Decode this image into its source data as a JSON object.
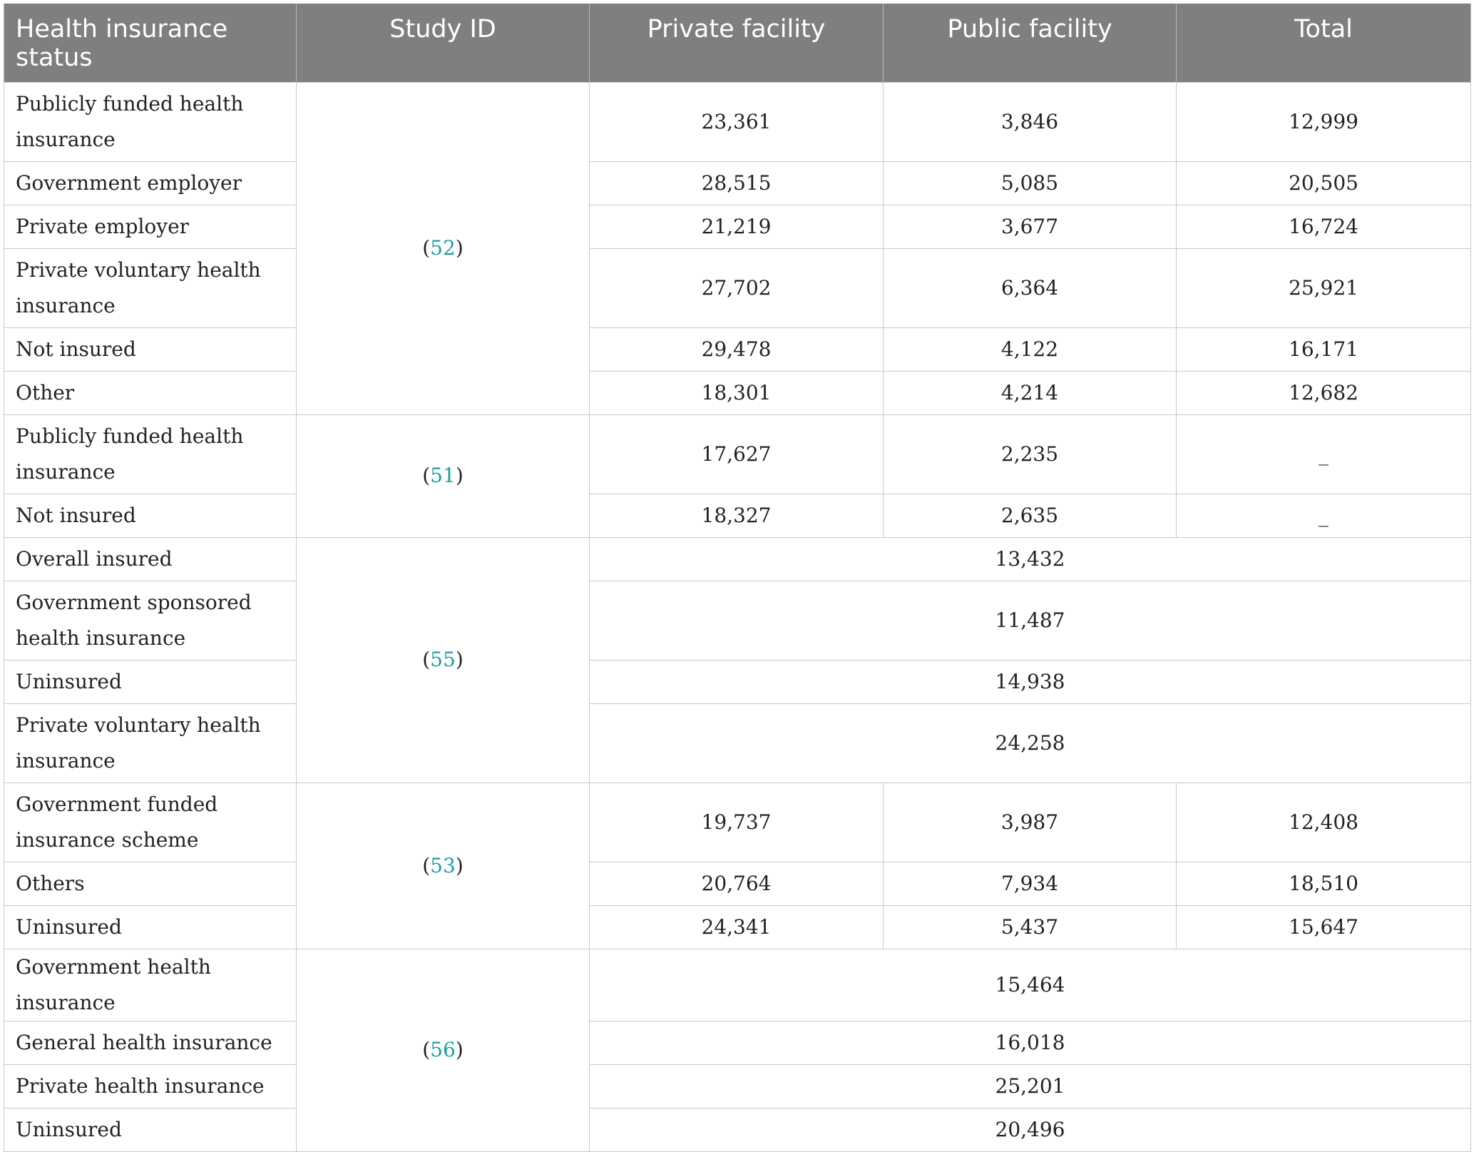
{
  "table": {
    "headers": [
      "Health insurance status",
      "Study ID",
      "Private facility",
      "Public facility",
      "Total"
    ],
    "groups": [
      {
        "study_id": "52",
        "rows": [
          {
            "status": "Publicly funded health insurance",
            "private": "23,361",
            "public": "3,846",
            "total": "12,999"
          },
          {
            "status": "Government employer",
            "private": "28,515",
            "public": "5,085",
            "total": "20,505"
          },
          {
            "status": "Private employer",
            "private": "21,219",
            "public": "3,677",
            "total": "16,724"
          },
          {
            "status": "Private voluntary health insurance",
            "private": "27,702",
            "public": "6,364",
            "total": "25,921"
          },
          {
            "status": "Not insured",
            "private": "29,478",
            "public": "4,122",
            "total": "16,171"
          },
          {
            "status": "Other",
            "private": "18,301",
            "public": "4,214",
            "total": "12,682"
          }
        ]
      },
      {
        "study_id": "51",
        "rows": [
          {
            "status": "Publicly funded health insurance",
            "private": "17,627",
            "public": "2,235",
            "total": "_"
          },
          {
            "status": "Not insured",
            "private": "18,327",
            "public": "2,635",
            "total": "_"
          }
        ]
      },
      {
        "study_id": "55",
        "rows": [
          {
            "status": "Overall insured",
            "merged": "13,432"
          },
          {
            "status": "Government sponsored health insurance",
            "merged": "11,487"
          },
          {
            "status": "Uninsured",
            "merged": "14,938"
          },
          {
            "status": "Private voluntary health insurance",
            "merged": "24,258"
          }
        ]
      },
      {
        "study_id": "53",
        "rows": [
          {
            "status": "Government funded insurance scheme",
            "private": "19,737",
            "public": "3,987",
            "total": "12,408"
          },
          {
            "status": "Others",
            "private": "20,764",
            "public": "7,934",
            "total": "18,510"
          },
          {
            "status": "Uninsured",
            "private": "24,341",
            "public": "5,437",
            "total": "15,647"
          }
        ]
      },
      {
        "study_id": "56",
        "rows": [
          {
            "status": "Government health insurance",
            "merged": "15,464"
          },
          {
            "status": "General health insurance",
            "merged": "16,018"
          },
          {
            "status": "Private health insurance",
            "merged": "25,201"
          },
          {
            "status": "Uninsured",
            "merged": "20,496"
          }
        ]
      }
    ]
  },
  "colors": {
    "header_bg": "#7d807f",
    "reference_link": "#1a9fa5",
    "border": "#c9c9c9"
  }
}
